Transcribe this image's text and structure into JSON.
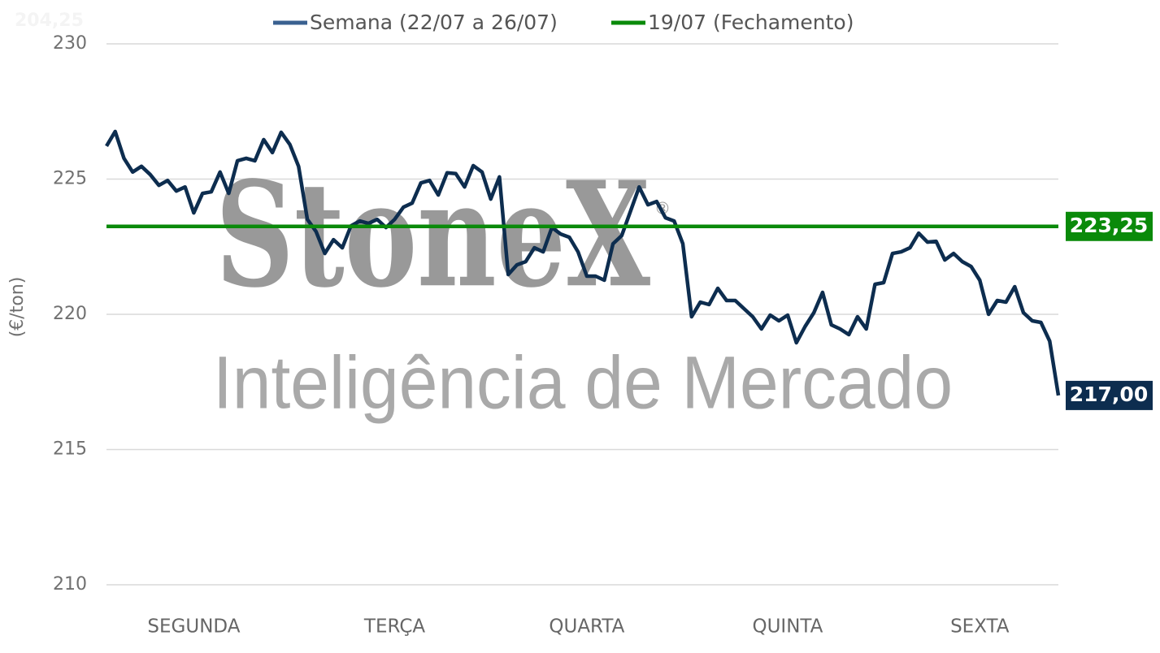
{
  "chart_data": {
    "type": "line",
    "annotation": "204,25",
    "watermark": [
      "StoneX",
      "®",
      "Inteligência de Mercado"
    ],
    "ylabel": "(€/ton)",
    "ylim": [
      210,
      230
    ],
    "yticks": [
      210,
      215,
      220,
      225,
      230
    ],
    "grid": true,
    "legend": "top",
    "categories": [
      null,
      null,
      null,
      null,
      null,
      null,
      null,
      null,
      null,
      null,
      "SEGUNDA",
      null,
      null,
      null,
      null,
      null,
      null,
      null,
      null,
      null,
      null,
      null,
      null,
      null,
      null,
      null,
      null,
      null,
      null,
      null,
      null,
      null,
      null,
      "TERÇA",
      null,
      null,
      null,
      null,
      null,
      null,
      null,
      null,
      null,
      null,
      null,
      null,
      null,
      null,
      null,
      null,
      null,
      null,
      null,
      null,
      null,
      "QUARTA",
      null,
      null,
      null,
      null,
      null,
      null,
      null,
      null,
      null,
      null,
      null,
      null,
      null,
      null,
      null,
      null,
      null,
      null,
      null,
      null,
      null,
      null,
      "QUINTA",
      null,
      null,
      null,
      null,
      null,
      null,
      null,
      null,
      null,
      null,
      null,
      null,
      null,
      null,
      null,
      null,
      null,
      null,
      null,
      null,
      null,
      "SEXTA",
      null,
      null,
      null,
      null,
      null,
      null,
      null,
      null,
      null
    ],
    "series": [
      {
        "name": "Semana (22/07 a 26/07)",
        "color": "#0d2d4f",
        "legend_color": "#3a6190",
        "values": [
          226.22,
          226.76,
          225.77,
          225.26,
          225.47,
          225.17,
          224.77,
          224.95,
          224.56,
          224.71,
          223.75,
          224.47,
          224.53,
          225.26,
          224.47,
          225.68,
          225.77,
          225.68,
          226.46,
          225.98,
          226.73,
          226.28,
          225.47,
          223.51,
          223.06,
          222.25,
          222.76,
          222.46,
          223.27,
          223.45,
          223.36,
          223.51,
          223.21,
          223.51,
          223.96,
          224.11,
          224.86,
          224.95,
          224.41,
          225.23,
          225.2,
          224.71,
          225.5,
          225.26,
          224.26,
          225.08,
          221.47,
          221.83,
          221.95,
          222.46,
          222.31,
          223.21,
          222.97,
          222.85,
          222.31,
          221.41,
          221.41,
          221.26,
          222.61,
          222.91,
          223.81,
          224.71,
          224.05,
          224.17,
          223.57,
          223.45,
          222.61,
          219.91,
          220.45,
          220.36,
          220.96,
          220.51,
          220.51,
          220.21,
          219.91,
          219.46,
          219.97,
          219.76,
          219.97,
          218.95,
          219.55,
          220.06,
          220.81,
          219.61,
          219.46,
          219.25,
          219.91,
          219.46,
          221.11,
          221.17,
          222.25,
          222.31,
          222.46,
          223.0,
          222.67,
          222.7,
          222.01,
          222.25,
          221.95,
          221.77,
          221.26,
          220.0,
          220.51,
          220.45,
          221.02,
          220.06,
          219.76,
          219.7,
          219.01,
          217.0
        ],
        "last_value_label": "217,00"
      },
      {
        "name": "19/07 (Fechamento)",
        "color": "#0a8a0a",
        "value": 223.25,
        "value_label": "223,25"
      }
    ]
  }
}
